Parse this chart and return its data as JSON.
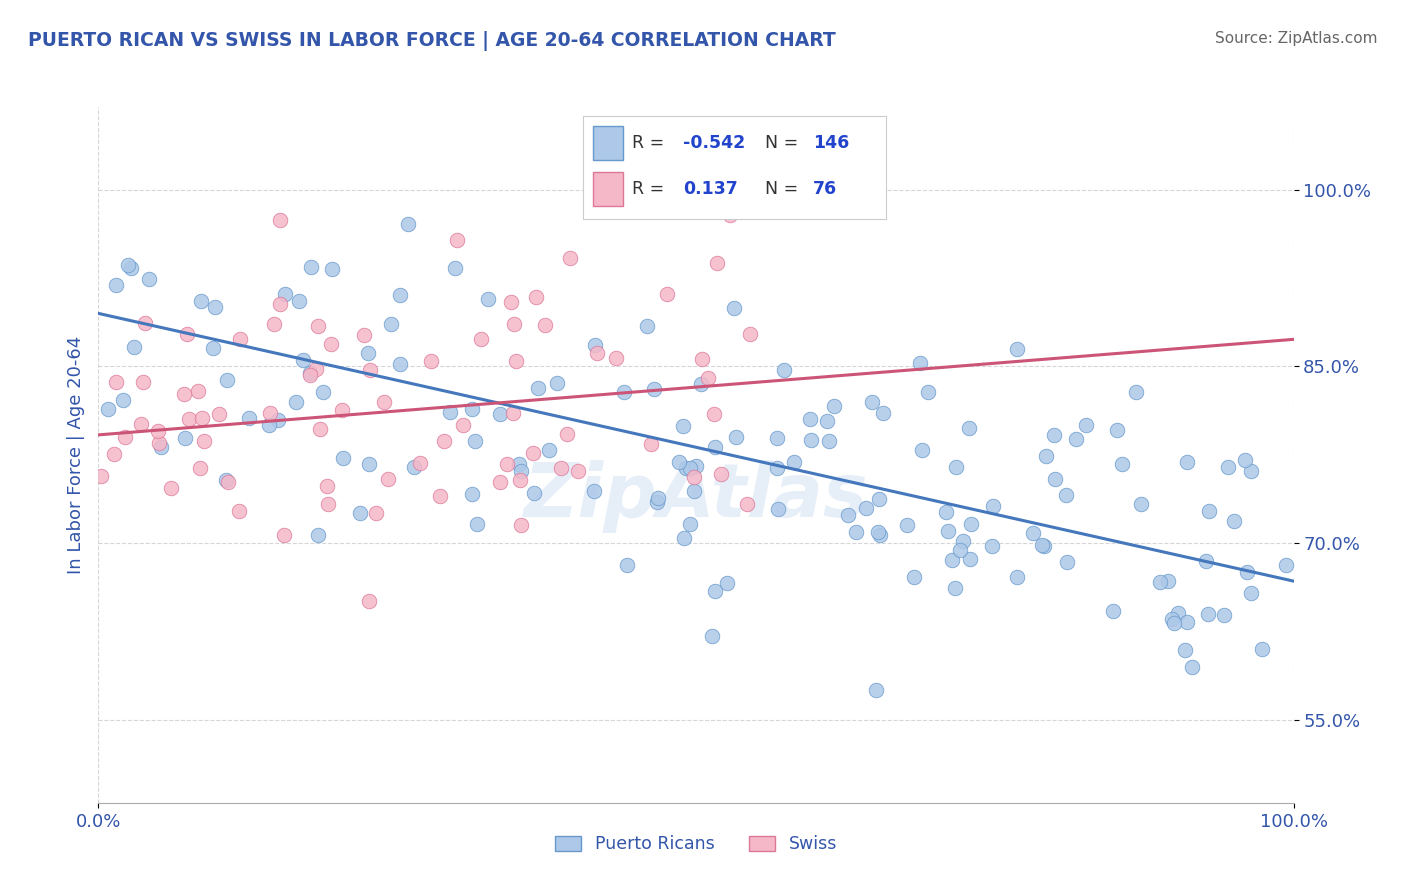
{
  "title": "PUERTO RICAN VS SWISS IN LABOR FORCE | AGE 20-64 CORRELATION CHART",
  "source": "Source: ZipAtlas.com",
  "ylabel": "In Labor Force | Age 20-64",
  "xlim": [
    0.0,
    1.0
  ],
  "ylim": [
    0.48,
    1.07
  ],
  "ytick_positions": [
    0.55,
    0.7,
    0.85,
    1.0
  ],
  "ytick_labels": [
    "55.0%",
    "70.0%",
    "85.0%",
    "100.0%"
  ],
  "xtick_positions": [
    0.0,
    1.0
  ],
  "xtick_labels": [
    "0.0%",
    "100.0%"
  ],
  "blue_R": -0.542,
  "blue_N": 146,
  "pink_R": 0.137,
  "pink_N": 76,
  "blue_color": "#adc8e8",
  "blue_edge_color": "#6699cc",
  "blue_line_color": "#4477bb",
  "pink_color": "#f5b8c8",
  "pink_edge_color": "#dd7799",
  "pink_line_color": "#cc5577",
  "legend_R_color": "#2244cc",
  "legend_N_color": "#2244cc",
  "watermark": "ZipAtlas",
  "watermark_color": "#adc8e8",
  "background_color": "#ffffff",
  "grid_color": "#cccccc",
  "title_color": "#3355aa",
  "axis_label_color": "#3355aa",
  "tick_label_color": "#3355aa",
  "blue_line_start_y": 0.895,
  "blue_line_end_y": 0.668,
  "pink_line_start_y": 0.792,
  "pink_line_end_y": 0.873
}
